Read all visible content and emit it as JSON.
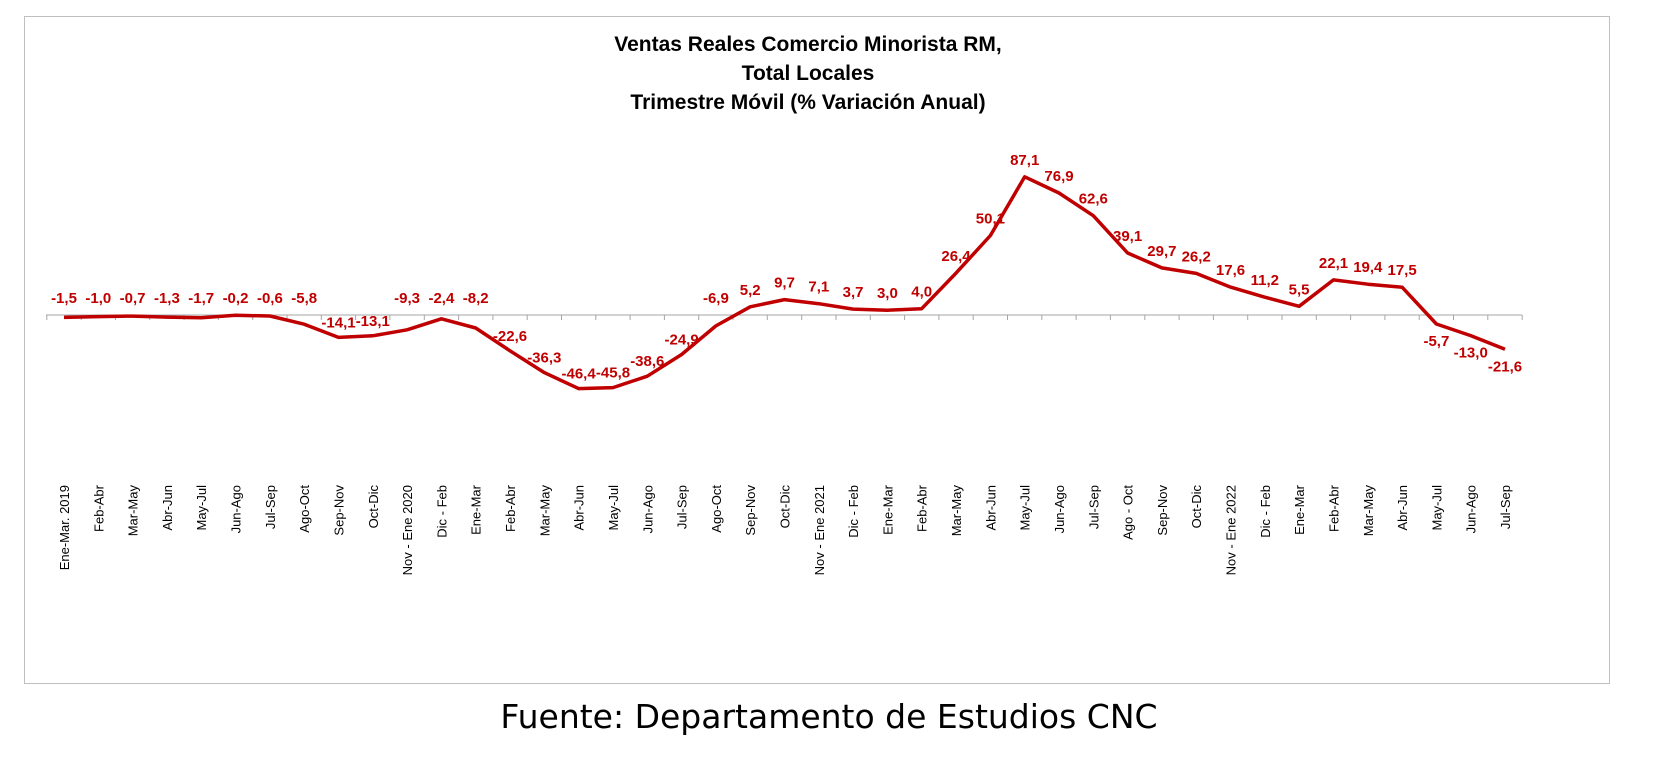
{
  "chart_data": {
    "type": "line",
    "title": [
      "Ventas Reales Comercio Minorista RM,",
      "Total Locales",
      "Trimestre Móvil (% Variación Anual)"
    ],
    "categories": [
      "Ene-Mar. 2019",
      "Feb-Abr",
      "Mar-May",
      "Abr-Jun",
      "May-Jul",
      "Jun-Ago",
      "Jul-Sep",
      "Ago-Oct",
      "Sep-Nov",
      "Oct-Dic",
      "Nov - Ene 2020",
      "Dic - Feb",
      "Ene-Mar",
      "Feb-Abr",
      "Mar-May",
      "Abr-Jun",
      "May-Jul",
      "Jun-Ago",
      "Jul-Sep",
      "Ago-Oct",
      "Sep-Nov",
      "Oct-Dic",
      "Nov - Ene 2021",
      "Dic - Feb",
      "Ene-Mar",
      "Feb-Abr",
      "Mar-May",
      "Abr-Jun",
      "May-Jul",
      "Jun-Ago",
      "Jul-Sep",
      "Ago - Oct",
      "Sep-Nov",
      "Oct-Dic",
      "Nov - Ene 2022",
      "Dic - Feb",
      "Ene-Mar",
      "Feb-Abr",
      "Mar-May",
      "Abr-Jun",
      "May-Jul",
      "Jun-Ago",
      "Jul-Sep"
    ],
    "series": [
      {
        "values": [
          -1.5,
          -1.0,
          -0.7,
          -1.3,
          -1.7,
          -0.2,
          -0.6,
          -5.8,
          -14.1,
          -13.1,
          -9.3,
          -2.4,
          -8.2,
          -22.6,
          -36.3,
          -46.4,
          -45.8,
          -38.6,
          -24.9,
          -6.9,
          5.2,
          9.7,
          7.1,
          3.7,
          3.0,
          4.0,
          26.4,
          50.1,
          87.1,
          76.9,
          62.6,
          39.1,
          29.7,
          26.2,
          17.6,
          11.2,
          5.5,
          22.1,
          19.4,
          17.5,
          -5.7,
          -13.0,
          -21.6
        ],
        "labels": [
          "-1,5",
          "-1,0",
          "-0,7",
          "-1,3",
          "-1,7",
          "-0,2",
          "-0,6",
          "-5,8",
          "-14,1",
          "-13,1",
          "-9,3",
          "-2,4",
          "-8,2",
          "-22,6",
          "-36,3",
          "-46,4",
          "-45,8",
          "-38,6",
          "-24,9",
          "-6,9",
          "5,2",
          "9,7",
          "7,1",
          "3,7",
          "3,0",
          "4,0",
          "26,4",
          "50,1",
          "87,1",
          "76,9",
          "62,6",
          "39,1",
          "29,7",
          "26,2",
          "17,6",
          "11,2",
          "5,5",
          "22,1",
          "19,4",
          "17,5",
          "-5,7",
          "-13,0",
          "-21,6"
        ],
        "color": "#c00000"
      }
    ],
    "ylim": [
      -87,
      87
    ],
    "grid": false,
    "legend": "none"
  },
  "footer": {
    "source": "Fuente: Departamento de Estudios CNC"
  }
}
